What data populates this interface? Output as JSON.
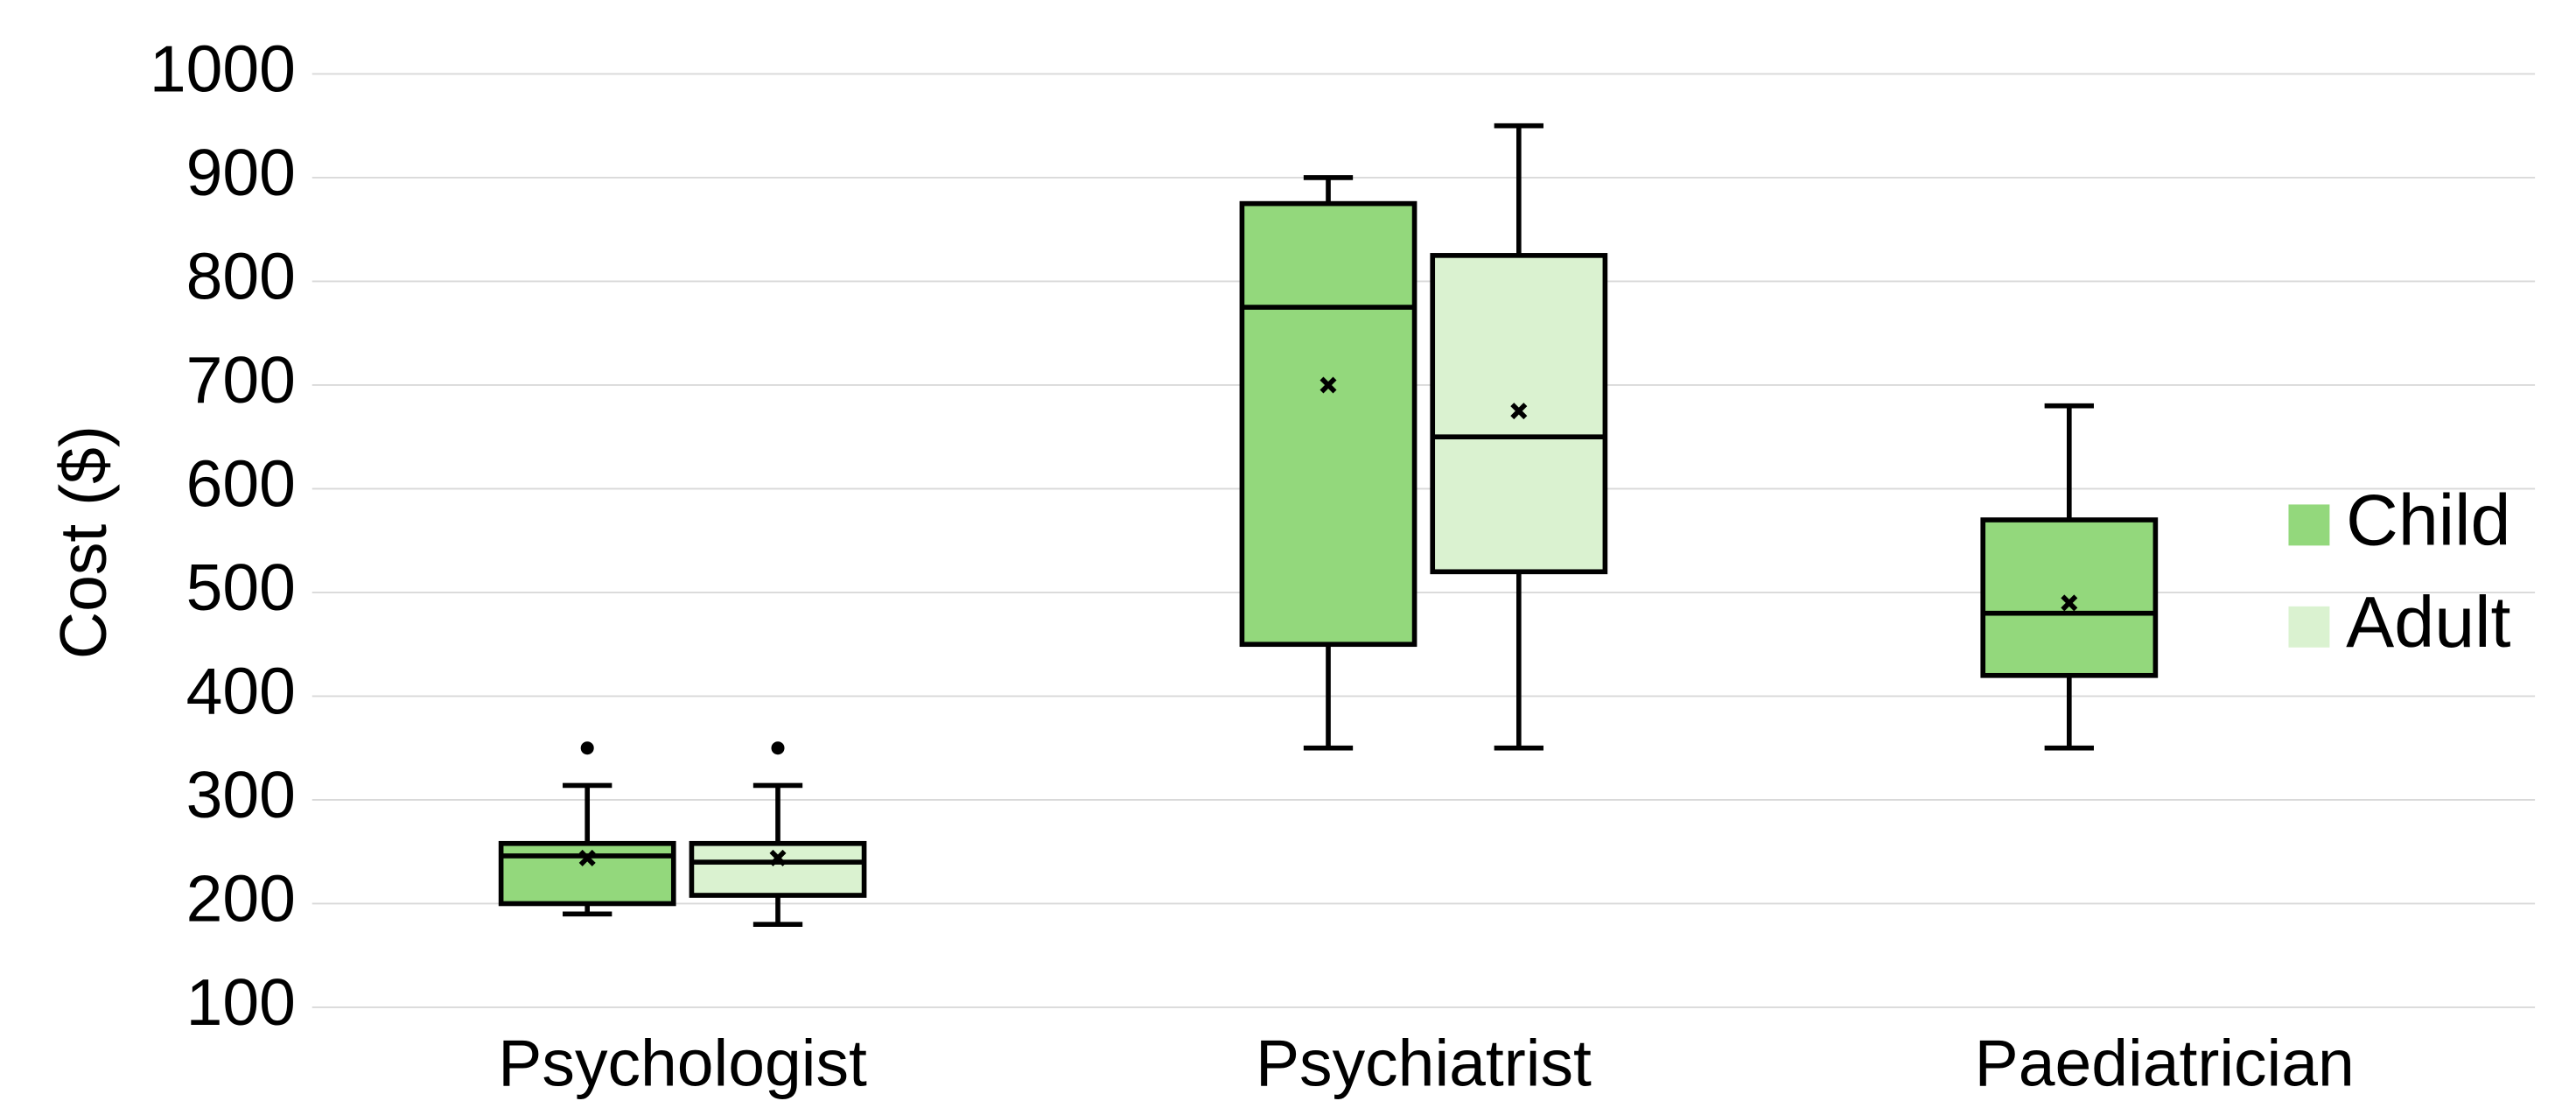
{
  "chart_data": {
    "type": "box",
    "y_label": "Cost ($)",
    "categories": [
      "Psychologist",
      "Psychiatrist",
      "Paediatrician"
    ],
    "series": [
      {
        "name": "Child",
        "color": "#93d87c",
        "values": [
          {
            "min": 190,
            "q1": 200,
            "median": 246,
            "q3": 258,
            "max": 314,
            "mean": 244,
            "outliers": [
              350
            ]
          },
          {
            "min": 350,
            "q1": 450,
            "median": 775,
            "q3": 875,
            "max": 900,
            "mean": 700,
            "outliers": []
          },
          {
            "min": 350,
            "q1": 420,
            "median": 480,
            "q3": 570,
            "max": 680,
            "mean": 490,
            "outliers": []
          }
        ]
      },
      {
        "name": "Adult",
        "color": "#daf2d0",
        "values": [
          {
            "min": 180,
            "q1": 208,
            "median": 240,
            "q3": 258,
            "max": 314,
            "mean": 244,
            "outliers": [
              350
            ]
          },
          {
            "min": 350,
            "q1": 520,
            "median": 650,
            "q3": 825,
            "max": 950,
            "mean": 675,
            "outliers": []
          },
          null
        ]
      }
    ],
    "ylim": [
      100,
      1000
    ],
    "yticks": [
      100,
      200,
      300,
      400,
      500,
      600,
      700,
      800,
      900,
      1000
    ],
    "grid": true,
    "legend": "right"
  }
}
